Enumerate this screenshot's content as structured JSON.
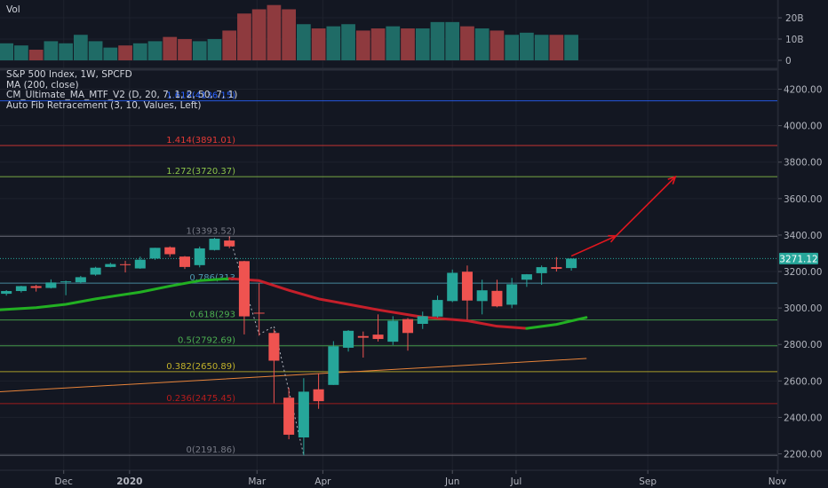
{
  "volume_pane": {
    "label": "Vol",
    "ticks": [
      {
        "label": "20B",
        "value": 20
      },
      {
        "label": "10B",
        "value": 10
      },
      {
        "label": "0",
        "value": 0
      }
    ]
  },
  "legend": {
    "symbol": "S&P 500 Index, 1W, SPCFD",
    "ma": "MA (200, close)",
    "cm_ma": "CM_Ultimate_MA_MTF_V2 (D, 20, 7, 1, 2, 50, 7, 1)",
    "fib": "Auto Fib Retracement (3, 10, Values, Left)"
  },
  "price_label": {
    "text": "3271.12",
    "value": 3271.12,
    "color": "#26a69a"
  },
  "colors": {
    "up": "#26a69a",
    "down": "#ef5350",
    "vol_up": "#1f6b66",
    "vol_down": "#8e3a3e",
    "ma200": "#e8843a",
    "ma_red": "#c51f2a",
    "ma_green": "#22b022",
    "arrow": "#e0161e"
  },
  "chart_data": [
    {
      "type": "candlestick",
      "title": "S&P 500 Index, 1W, SPCFD",
      "y_axis_ticks": [
        2200,
        2400,
        2600,
        2800,
        3000,
        3200,
        3400,
        3600,
        3800,
        4000,
        4200
      ],
      "y_axis_tick_labels": [
        "2200.00",
        "2400.00",
        "2600.00",
        "2800.00",
        "3000.00",
        "3200.00",
        "3400.00",
        "3600.00",
        "3800.00",
        "4000.00",
        "4200.00"
      ],
      "ylim": [
        2110,
        4300
      ],
      "x_axis_tick_labels": [
        {
          "label": "Dec",
          "date": "2019-12-01"
        },
        {
          "label": "2020",
          "date": "2020-01-01"
        },
        {
          "label": "Mar",
          "date": "2020-03-01"
        },
        {
          "label": "Apr",
          "date": "2020-04-01"
        },
        {
          "label": "Jun",
          "date": "2020-06-01"
        },
        {
          "label": "Jul",
          "date": "2020-07-01"
        },
        {
          "label": "Sep",
          "date": "2020-09-01"
        },
        {
          "label": "Nov",
          "date": "2020-11-01"
        }
      ],
      "xlim": [
        "2019-11-01",
        "2020-11-01"
      ],
      "candles": [
        {
          "date": "2019-11-04",
          "open": 3078,
          "high": 3098,
          "low": 3068,
          "close": 3093
        },
        {
          "date": "2019-11-11",
          "open": 3093,
          "high": 3122,
          "low": 3085,
          "close": 3120
        },
        {
          "date": "2019-11-18",
          "open": 3120,
          "high": 3127,
          "low": 3090,
          "close": 3110
        },
        {
          "date": "2019-11-25",
          "open": 3110,
          "high": 3157,
          "low": 3107,
          "close": 3140
        },
        {
          "date": "2019-12-02",
          "open": 3143,
          "high": 3150,
          "low": 3070,
          "close": 3146
        },
        {
          "date": "2019-12-09",
          "open": 3141,
          "high": 3176,
          "low": 3134,
          "close": 3169
        },
        {
          "date": "2019-12-16",
          "open": 3183,
          "high": 3226,
          "low": 3177,
          "close": 3221
        },
        {
          "date": "2019-12-23",
          "open": 3225,
          "high": 3248,
          "low": 3223,
          "close": 3241
        },
        {
          "date": "2019-12-30",
          "open": 3240,
          "high": 3259,
          "low": 3195,
          "close": 3235
        },
        {
          "date": "2020-01-06",
          "open": 3217,
          "high": 3282,
          "low": 3215,
          "close": 3265
        },
        {
          "date": "2020-01-13",
          "open": 3271,
          "high": 3330,
          "low": 3264,
          "close": 3330
        },
        {
          "date": "2020-01-20",
          "open": 3333,
          "high": 3338,
          "low": 3281,
          "close": 3295
        },
        {
          "date": "2020-01-27",
          "open": 3282,
          "high": 3285,
          "low": 3214,
          "close": 3225
        },
        {
          "date": "2020-02-03",
          "open": 3235,
          "high": 3337,
          "low": 3223,
          "close": 3327
        },
        {
          "date": "2020-02-10",
          "open": 3318,
          "high": 3385,
          "low": 3315,
          "close": 3380
        },
        {
          "date": "2020-02-17",
          "open": 3370,
          "high": 3393,
          "low": 3328,
          "close": 3338
        },
        {
          "date": "2020-02-24",
          "open": 3257,
          "high": 3259,
          "low": 2855,
          "close": 2954
        },
        {
          "date": "2020-03-02",
          "open": 2974,
          "high": 3136,
          "low": 2848,
          "close": 2972
        },
        {
          "date": "2020-03-09",
          "open": 2863,
          "high": 2883,
          "low": 2478,
          "close": 2711
        },
        {
          "date": "2020-03-16",
          "open": 2508,
          "high": 2562,
          "low": 2280,
          "close": 2305
        },
        {
          "date": "2020-03-23",
          "open": 2290,
          "high": 2615,
          "low": 2192,
          "close": 2541
        },
        {
          "date": "2020-03-30",
          "open": 2554,
          "high": 2641,
          "low": 2447,
          "close": 2489
        },
        {
          "date": "2020-04-06",
          "open": 2578,
          "high": 2818,
          "low": 2578,
          "close": 2790
        },
        {
          "date": "2020-04-13",
          "open": 2782,
          "high": 2879,
          "low": 2761,
          "close": 2875
        },
        {
          "date": "2020-04-20",
          "open": 2846,
          "high": 2871,
          "low": 2728,
          "close": 2837
        },
        {
          "date": "2020-04-27",
          "open": 2854,
          "high": 2965,
          "low": 2816,
          "close": 2830
        },
        {
          "date": "2020-05-04",
          "open": 2815,
          "high": 2955,
          "low": 2797,
          "close": 2930
        },
        {
          "date": "2020-05-11",
          "open": 2939,
          "high": 2945,
          "low": 2766,
          "close": 2863
        },
        {
          "date": "2020-05-18",
          "open": 2913,
          "high": 2980,
          "low": 2885,
          "close": 2955
        },
        {
          "date": "2020-05-25",
          "open": 2953,
          "high": 3068,
          "low": 2947,
          "close": 3044
        },
        {
          "date": "2020-06-01",
          "open": 3038,
          "high": 3211,
          "low": 3032,
          "close": 3193
        },
        {
          "date": "2020-06-08",
          "open": 3199,
          "high": 3233,
          "low": 2936,
          "close": 3041
        },
        {
          "date": "2020-06-15",
          "open": 3038,
          "high": 3155,
          "low": 2965,
          "close": 3097
        },
        {
          "date": "2020-06-22",
          "open": 3094,
          "high": 3155,
          "low": 3004,
          "close": 3009
        },
        {
          "date": "2020-06-29",
          "open": 3018,
          "high": 3165,
          "low": 2999,
          "close": 3130
        },
        {
          "date": "2020-07-06",
          "open": 3155,
          "high": 3186,
          "low": 3116,
          "close": 3185
        },
        {
          "date": "2020-07-13",
          "open": 3191,
          "high": 3233,
          "low": 3127,
          "close": 3224
        },
        {
          "date": "2020-07-20",
          "open": 3224,
          "high": 3279,
          "low": 3200,
          "close": 3215
        },
        {
          "date": "2020-07-27",
          "open": 3219,
          "high": 3272,
          "low": 3205,
          "close": 3271
        }
      ],
      "volume_billions": [
        8,
        7,
        5,
        9,
        8,
        12,
        9,
        6,
        7,
        8,
        9,
        11,
        10,
        9,
        10,
        14,
        22,
        24,
        26,
        24,
        17,
        15,
        16,
        17,
        14,
        15,
        16,
        15,
        15,
        18,
        18,
        16,
        15,
        14,
        12,
        13,
        12,
        12,
        12
      ],
      "moving_averages": [
        {
          "color": "#e8843a",
          "points": [
            {
              "date": "2019-11-01",
              "value": 2541
            },
            {
              "date": "2020-08-03",
              "value": 2723
            }
          ]
        },
        {
          "color": "#22b022",
          "points": [
            {
              "date": "2019-11-01",
              "value": 2990
            },
            {
              "date": "2019-11-18",
              "value": 3002
            },
            {
              "date": "2019-12-02",
              "value": 3020
            },
            {
              "date": "2019-12-16",
              "value": 3050
            },
            {
              "date": "2020-01-06",
              "value": 3087
            },
            {
              "date": "2020-01-20",
              "value": 3120
            },
            {
              "date": "2020-02-03",
              "value": 3150
            },
            {
              "date": "2020-02-17",
              "value": 3161
            }
          ]
        },
        {
          "color": "#c51f2a",
          "points": [
            {
              "date": "2020-02-17",
              "value": 3161
            },
            {
              "date": "2020-03-02",
              "value": 3150
            },
            {
              "date": "2020-03-16",
              "value": 3097
            },
            {
              "date": "2020-03-30",
              "value": 3050
            },
            {
              "date": "2020-04-13",
              "value": 3020
            },
            {
              "date": "2020-04-27",
              "value": 2990
            },
            {
              "date": "2020-05-18",
              "value": 2950
            },
            {
              "date": "2020-06-08",
              "value": 2930
            },
            {
              "date": "2020-06-22",
              "value": 2900
            },
            {
              "date": "2020-07-06",
              "value": 2888
            }
          ]
        },
        {
          "color": "#22b022",
          "points": [
            {
              "date": "2020-07-06",
              "value": 2888
            },
            {
              "date": "2020-07-20",
              "value": 2910
            },
            {
              "date": "2020-08-03",
              "value": 2948
            }
          ]
        }
      ],
      "fib_levels": [
        {
          "level": "0",
          "value": 2191.86,
          "label": "0(2191.86)",
          "color": "#787b86"
        },
        {
          "level": "0.236",
          "value": 2475.45,
          "label": "0.236(2475.45)",
          "color": "#b71c1c"
        },
        {
          "level": "0.382",
          "value": 2650.89,
          "label": "0.382(2650.89)",
          "color": "#c2b22a"
        },
        {
          "level": "0.5",
          "value": 2792.69,
          "label": "0.5(2792.69)",
          "color": "#4caf50"
        },
        {
          "level": "0.618",
          "value": 2934.49,
          "label": "0.618(293",
          "color": "#4caf50"
        },
        {
          "level": "0.786",
          "value": 3136.36,
          "label": "0.786(313",
          "color": "#4e9bb0"
        },
        {
          "level": "1",
          "value": 3393.52,
          "label": "1(3393.52)",
          "color": "#787b86"
        },
        {
          "level": "1.272",
          "value": 3720.37,
          "label": "1.272(3720.37)",
          "color": "#8bc34a"
        },
        {
          "level": "1.414",
          "value": 3891.01,
          "label": "1.414(3891.01)",
          "color": "#e53935"
        },
        {
          "level": "1.618",
          "value": 4136.15,
          "label": "1.618(4136.15)",
          "color": "#2962ff"
        }
      ],
      "current_price_line": 3271.12,
      "arrows": [
        {
          "from": {
            "date": "2020-07-27",
            "value": 3285
          },
          "to": {
            "date": "2020-08-17",
            "value": 3395
          }
        },
        {
          "from": {
            "date": "2020-08-17",
            "value": 3395
          },
          "to": {
            "date": "2020-09-14",
            "value": 3720
          }
        }
      ],
      "dashed_path": [
        {
          "date": "2020-02-17",
          "value": 3393
        },
        {
          "date": "2020-03-02",
          "value": 2855
        },
        {
          "date": "2020-03-09",
          "value": 2900
        },
        {
          "date": "2020-03-23",
          "value": 2192
        }
      ]
    }
  ]
}
